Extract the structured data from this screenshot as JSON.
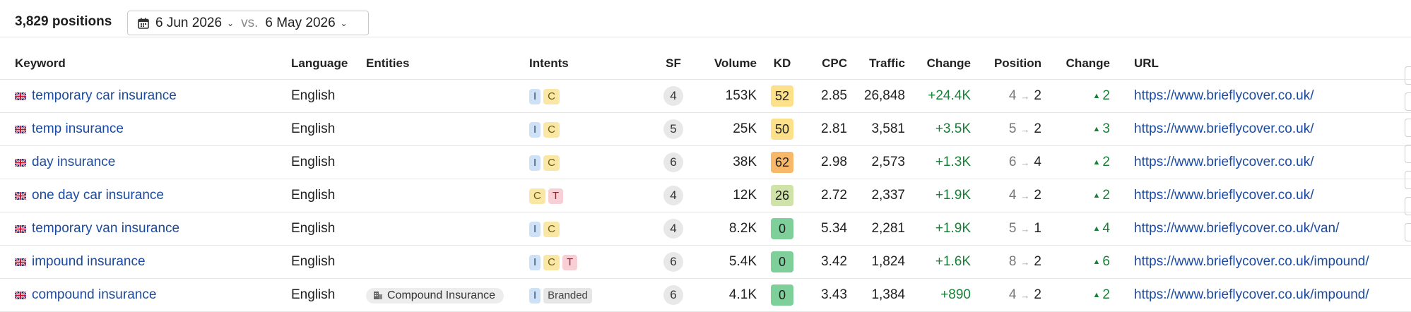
{
  "header": {
    "count_label": "3,829 positions",
    "date_current": "6 Jun 2026",
    "vs_label": "vs.",
    "date_compare": "6 May 2026"
  },
  "columns": [
    "Keyword",
    "Language",
    "Entities",
    "Intents",
    "SF",
    "Volume",
    "KD",
    "CPC",
    "Traffic",
    "Change",
    "Position",
    "Change",
    "URL"
  ],
  "colors": {
    "link": "#1b4aa0",
    "positive": "#198038",
    "kd_yellow": "#fce08a",
    "kd_orange": "#f7b86a",
    "kd_lightgreen": "#cfe3a8",
    "kd_green": "#7fcf9a"
  },
  "rows": [
    {
      "keyword": "temporary car insurance",
      "language": "English",
      "entity": "",
      "intents": [
        "I",
        "C"
      ],
      "sf": "4",
      "volume": "153K",
      "kd": "52",
      "kd_color": "#fce08a",
      "cpc": "2.85",
      "traffic": "26,848",
      "change": "+24.4K",
      "pos_from": "4",
      "pos_to": "2",
      "pos_change": "2",
      "url": "https://www.brieflycover.co.uk/"
    },
    {
      "keyword": "temp insurance",
      "language": "English",
      "entity": "",
      "intents": [
        "I",
        "C"
      ],
      "sf": "5",
      "volume": "25K",
      "kd": "50",
      "kd_color": "#fce08a",
      "cpc": "2.81",
      "traffic": "3,581",
      "change": "+3.5K",
      "pos_from": "5",
      "pos_to": "2",
      "pos_change": "3",
      "url": "https://www.brieflycover.co.uk/"
    },
    {
      "keyword": "day insurance",
      "language": "English",
      "entity": "",
      "intents": [
        "I",
        "C"
      ],
      "sf": "6",
      "volume": "38K",
      "kd": "62",
      "kd_color": "#f7b86a",
      "cpc": "2.98",
      "traffic": "2,573",
      "change": "+1.3K",
      "pos_from": "6",
      "pos_to": "4",
      "pos_change": "2",
      "url": "https://www.brieflycover.co.uk/"
    },
    {
      "keyword": "one day car insurance",
      "language": "English",
      "entity": "",
      "intents": [
        "C",
        "T"
      ],
      "sf": "4",
      "volume": "12K",
      "kd": "26",
      "kd_color": "#cfe3a8",
      "cpc": "2.72",
      "traffic": "2,337",
      "change": "+1.9K",
      "pos_from": "4",
      "pos_to": "2",
      "pos_change": "2",
      "url": "https://www.brieflycover.co.uk/"
    },
    {
      "keyword": "temporary van insurance",
      "language": "English",
      "entity": "",
      "intents": [
        "I",
        "C"
      ],
      "sf": "4",
      "volume": "8.2K",
      "kd": "0",
      "kd_color": "#7fcf9a",
      "cpc": "5.34",
      "traffic": "2,281",
      "change": "+1.9K",
      "pos_from": "5",
      "pos_to": "1",
      "pos_change": "4",
      "url": "https://www.brieflycover.co.uk/van/"
    },
    {
      "keyword": "impound insurance",
      "language": "English",
      "entity": "",
      "intents": [
        "I",
        "C",
        "T"
      ],
      "sf": "6",
      "volume": "5.4K",
      "kd": "0",
      "kd_color": "#7fcf9a",
      "cpc": "3.42",
      "traffic": "1,824",
      "change": "+1.6K",
      "pos_from": "8",
      "pos_to": "2",
      "pos_change": "6",
      "url": "https://www.brieflycover.co.uk/impound/"
    },
    {
      "keyword": "compound insurance",
      "language": "English",
      "entity": "Compound Insurance",
      "intents": [
        "I",
        "Branded"
      ],
      "sf": "6",
      "volume": "4.1K",
      "kd": "0",
      "kd_color": "#7fcf9a",
      "cpc": "3.43",
      "traffic": "1,384",
      "change": "+890",
      "pos_from": "4",
      "pos_to": "2",
      "pos_change": "2",
      "url": "https://www.brieflycover.co.uk/impound/"
    }
  ]
}
